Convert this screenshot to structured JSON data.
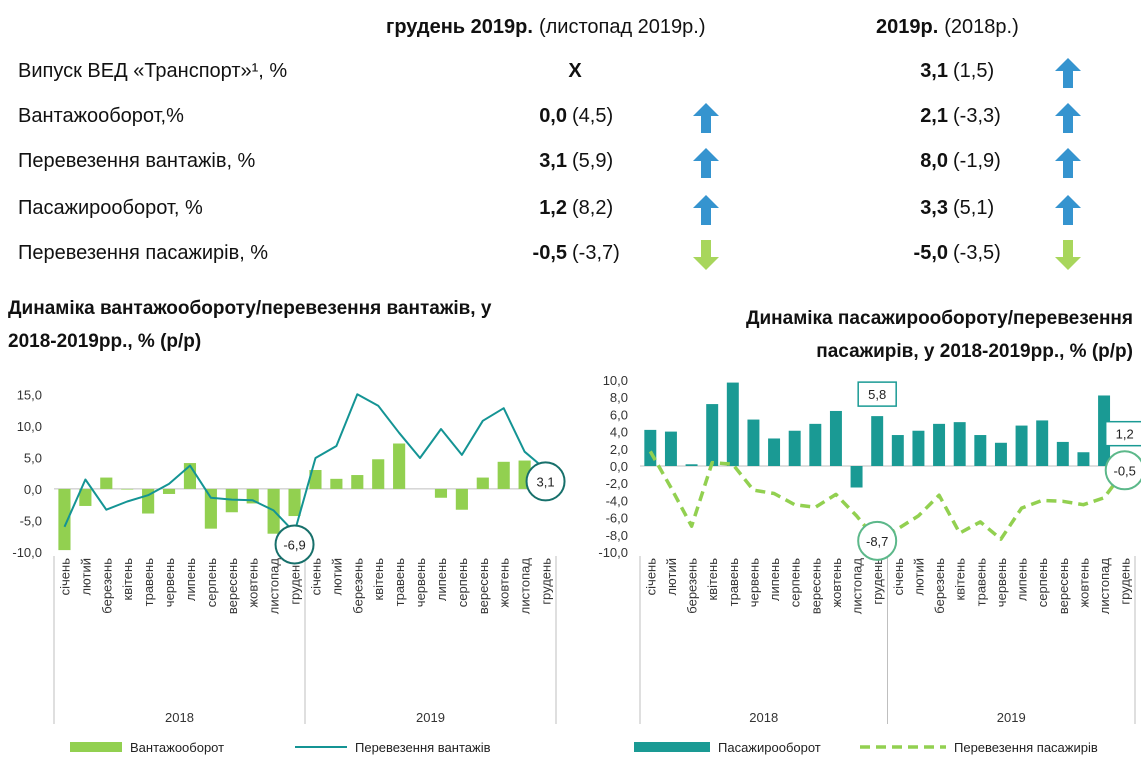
{
  "table": {
    "header": [
      {
        "value": "грудень 2019р.",
        "note": "(листопад 2019р.)"
      },
      {
        "value": "2019р.",
        "note": "(2018р.)"
      }
    ],
    "rows": [
      {
        "label": "Випуск ВЕД «Транспорт»¹, %",
        "cells": [
          {
            "value": "Х"
          },
          {
            "value": "3,1",
            "note": "(1,5)",
            "trend": "up"
          }
        ]
      },
      {
        "label": "Вантажооборот,%",
        "cells": [
          {
            "value": "0,0",
            "note": "(4,5)",
            "trend": "up"
          },
          {
            "value": "2,1",
            "note": "(-3,3)",
            "trend": "up"
          }
        ]
      },
      {
        "label": "Перевезення вантажів, %",
        "cells": [
          {
            "value": "3,1",
            "note": "(5,9)",
            "trend": "up"
          },
          {
            "value": "8,0",
            "note": "(-1,9)",
            "trend": "up"
          }
        ]
      },
      {
        "label": "Пасажирооборот, %",
        "cells": [
          {
            "value": "1,2",
            "note": "(8,2)",
            "trend": "up"
          },
          {
            "value": "3,3",
            "note": "(5,1)",
            "trend": "up"
          }
        ]
      },
      {
        "label": "Перевезення пасажирів, %",
        "cells": [
          {
            "value": "-0,5",
            "note": "(-3,7)",
            "trend": "down"
          },
          {
            "value": "-5,0",
            "note": "(-3,5)",
            "trend": "down"
          }
        ]
      }
    ]
  },
  "chart_data": [
    {
      "type": "bar-line",
      "title": "Динаміка вантажообороту/перевезення вантажів, у 2018-2019рр., % (р/р)",
      "categories": [
        "січень",
        "лютий",
        "березень",
        "квітень",
        "травень",
        "червень",
        "липень",
        "серпень",
        "вересень",
        "жовтень",
        "листопад",
        "грудень",
        "січень",
        "лютий",
        "березень",
        "квітень",
        "травень",
        "червень",
        "липень",
        "серпень",
        "вересень",
        "жовтень",
        "листопад",
        "грудень"
      ],
      "groups": [
        "2018",
        "2019"
      ],
      "ylim": [
        -10,
        16
      ],
      "yticks": [
        {
          "value": 15,
          "label": "15,0"
        },
        {
          "value": 10,
          "label": "10,0"
        },
        {
          "value": 5,
          "label": "5,0"
        },
        {
          "value": 0,
          "label": "0,0"
        },
        {
          "value": -5,
          "label": "-5,0"
        },
        {
          "value": -10,
          "label": "-10,0"
        }
      ],
      "grid": false,
      "series": [
        {
          "name": "Вантажооборот",
          "type": "bar",
          "color": "#92d050",
          "values": [
            -9.7,
            -2.7,
            1.8,
            -0.1,
            -3.9,
            -0.8,
            4.1,
            -6.3,
            -3.7,
            -2.3,
            -7.1,
            -4.3,
            3.0,
            1.6,
            2.2,
            4.7,
            7.2,
            0.0,
            -1.4,
            -3.3,
            1.8,
            4.3,
            4.5,
            0.0
          ]
        },
        {
          "name": "Перевезення вантажів",
          "type": "line",
          "color": "#149494",
          "label_style": "circle",
          "values": [
            -6.0,
            1.5,
            -3.3,
            -2.0,
            -1.0,
            0.8,
            3.7,
            -1.4,
            -1.7,
            -1.8,
            -3.4,
            -6.9,
            4.9,
            6.8,
            15.0,
            13.2,
            8.9,
            4.9,
            9.5,
            5.4,
            10.8,
            12.8,
            5.9,
            3.1
          ],
          "value_labels": [
            null,
            null,
            null,
            null,
            null,
            null,
            null,
            null,
            null,
            null,
            null,
            "-6,9",
            null,
            null,
            null,
            null,
            null,
            null,
            null,
            null,
            null,
            null,
            null,
            "3,1"
          ]
        }
      ]
    },
    {
      "type": "bar-line",
      "title": "Динаміка пасажирообороту/перевезення пасажирів, у 2018-2019рр., % (р/р)",
      "categories": [
        "січень",
        "лютий",
        "березень",
        "квітень",
        "травень",
        "червень",
        "липень",
        "серпень",
        "вересень",
        "жовтень",
        "листопад",
        "грудень",
        "січень",
        "лютий",
        "березень",
        "квітень",
        "травень",
        "червень",
        "липень",
        "серпень",
        "вересень",
        "жовтень",
        "листопад",
        "грудень"
      ],
      "groups": [
        "2018",
        "2019"
      ],
      "ylim": [
        -10,
        10
      ],
      "yticks": [
        {
          "value": 10,
          "label": "10,0"
        },
        {
          "value": 8,
          "label": "8,0"
        },
        {
          "value": 6,
          "label": "6,0"
        },
        {
          "value": 4,
          "label": "4,0"
        },
        {
          "value": 2,
          "label": "2,0"
        },
        {
          "value": 0,
          "label": "0,0"
        },
        {
          "value": -2,
          "label": "-2,0"
        },
        {
          "value": -4,
          "label": "-4,0"
        },
        {
          "value": -6,
          "label": "-6,0"
        },
        {
          "value": -8,
          "label": "-8,0"
        },
        {
          "value": -10,
          "label": "-10,0"
        }
      ],
      "grid": false,
      "series": [
        {
          "name": "Пасажирооборот",
          "type": "bar",
          "color": "#1a9a94",
          "label_style": "box",
          "values": [
            4.2,
            4.0,
            0.2,
            7.2,
            9.7,
            5.4,
            3.2,
            4.1,
            4.9,
            6.4,
            -2.5,
            5.8,
            3.6,
            4.1,
            4.9,
            5.1,
            3.6,
            2.7,
            4.7,
            5.3,
            2.8,
            1.6,
            8.2,
            1.2
          ],
          "value_labels": [
            null,
            null,
            null,
            null,
            null,
            null,
            null,
            null,
            null,
            null,
            null,
            "5,8",
            null,
            null,
            null,
            null,
            null,
            null,
            null,
            null,
            null,
            null,
            null,
            "1,2"
          ]
        },
        {
          "name": "Перевезення пасажирів",
          "type": "line",
          "color": "#92d050",
          "dashed": true,
          "label_style": "circle",
          "values": [
            1.7,
            -2.5,
            -7.0,
            0.4,
            0.2,
            -2.8,
            -3.2,
            -4.5,
            -4.8,
            -3.3,
            -5.8,
            -8.7,
            -7.3,
            -5.8,
            -3.4,
            -7.8,
            -6.5,
            -8.5,
            -4.9,
            -4.0,
            -4.1,
            -4.5,
            -3.7,
            -0.5
          ],
          "value_labels": [
            null,
            null,
            null,
            null,
            null,
            null,
            null,
            null,
            null,
            null,
            null,
            "-8,7",
            null,
            null,
            null,
            null,
            null,
            null,
            null,
            null,
            null,
            null,
            null,
            "-0,5"
          ]
        }
      ]
    }
  ]
}
